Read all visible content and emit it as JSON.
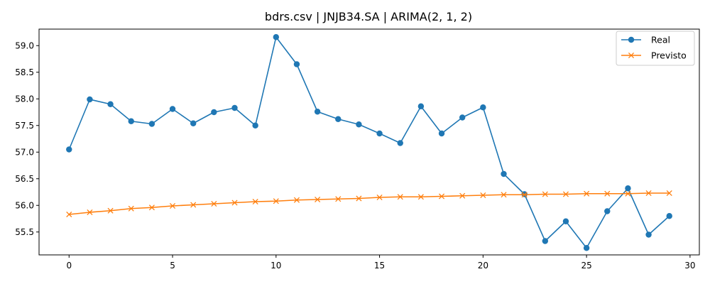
{
  "chart_data": {
    "type": "line",
    "title": "bdrs.csv | JNJB34.SA | ARIMA(2, 1, 2)",
    "xlabel": "",
    "ylabel": "",
    "xlim": [
      -1.45,
      30.45
    ],
    "ylim": [
      55.07,
      59.31
    ],
    "xticks": [
      0,
      5,
      10,
      15,
      20,
      25,
      30
    ],
    "yticks": [
      55.5,
      56.0,
      56.5,
      57.0,
      57.5,
      58.0,
      58.5,
      59.0
    ],
    "legend_position": "top-right",
    "grid": false,
    "x": [
      0,
      1,
      2,
      3,
      4,
      5,
      6,
      7,
      8,
      9,
      10,
      11,
      12,
      13,
      14,
      15,
      16,
      17,
      18,
      19,
      20,
      21,
      22,
      23,
      24,
      25,
      26,
      27,
      28,
      29
    ],
    "series": [
      {
        "name": "Real",
        "color": "#1f77b4",
        "marker": "circle",
        "values": [
          57.05,
          57.99,
          57.9,
          57.58,
          57.53,
          57.81,
          57.54,
          57.75,
          57.83,
          57.5,
          59.16,
          58.65,
          57.76,
          57.62,
          57.52,
          57.35,
          57.17,
          57.86,
          57.35,
          57.65,
          57.84,
          56.59,
          56.21,
          55.33,
          55.7,
          55.2,
          55.89,
          56.32,
          55.45,
          55.8
        ]
      },
      {
        "name": "Previsto",
        "color": "#ff7f0e",
        "marker": "x",
        "values": [
          55.83,
          55.87,
          55.9,
          55.94,
          55.96,
          55.99,
          56.01,
          56.03,
          56.05,
          56.07,
          56.08,
          56.1,
          56.11,
          56.12,
          56.13,
          56.15,
          56.16,
          56.16,
          56.17,
          56.18,
          56.19,
          56.2,
          56.2,
          56.21,
          56.21,
          56.22,
          56.22,
          56.22,
          56.23,
          56.23
        ]
      }
    ]
  }
}
